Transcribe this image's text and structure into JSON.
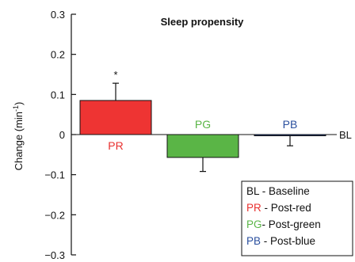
{
  "chart_data": {
    "type": "bar",
    "title": "Sleep propensity",
    "ylabel": "Change (min",
    "ylabel_superscript": "-1",
    "ylabel_close": ")",
    "ylim": [
      -0.3,
      0.3
    ],
    "yticks": [
      0.3,
      0.2,
      0.1,
      0,
      -0.1,
      -0.2,
      -0.3
    ],
    "ytick_labels": [
      "0.3",
      "0.2",
      "0.1",
      "0",
      "−0.1",
      "−0.2",
      "−0.3"
    ],
    "grid": false,
    "baseline_label": "BL",
    "categories": [
      "PR",
      "PG",
      "PB"
    ],
    "values": [
      0.085,
      -0.057,
      -0.003
    ],
    "errors": [
      0.043,
      0.035,
      0.025
    ],
    "significance": [
      "*",
      "",
      ""
    ],
    "colors": [
      "#ee3433",
      "#5ab546",
      "#1f3f90"
    ],
    "label_colors": [
      "#e8302f",
      "#5ab546",
      "#2a4f9e"
    ],
    "legend": {
      "placement": "bottom-right",
      "entries": [
        {
          "abbr": "BL",
          "text": " - Baseline",
          "color": "#111111"
        },
        {
          "abbr": "PR",
          "text": " - Post-red",
          "color": "#e8302f"
        },
        {
          "abbr": "PG",
          "text": "- Post-green",
          "color": "#5ab546"
        },
        {
          "abbr": "PB",
          "text": " - Post-blue",
          "color": "#2a4f9e"
        }
      ]
    }
  }
}
